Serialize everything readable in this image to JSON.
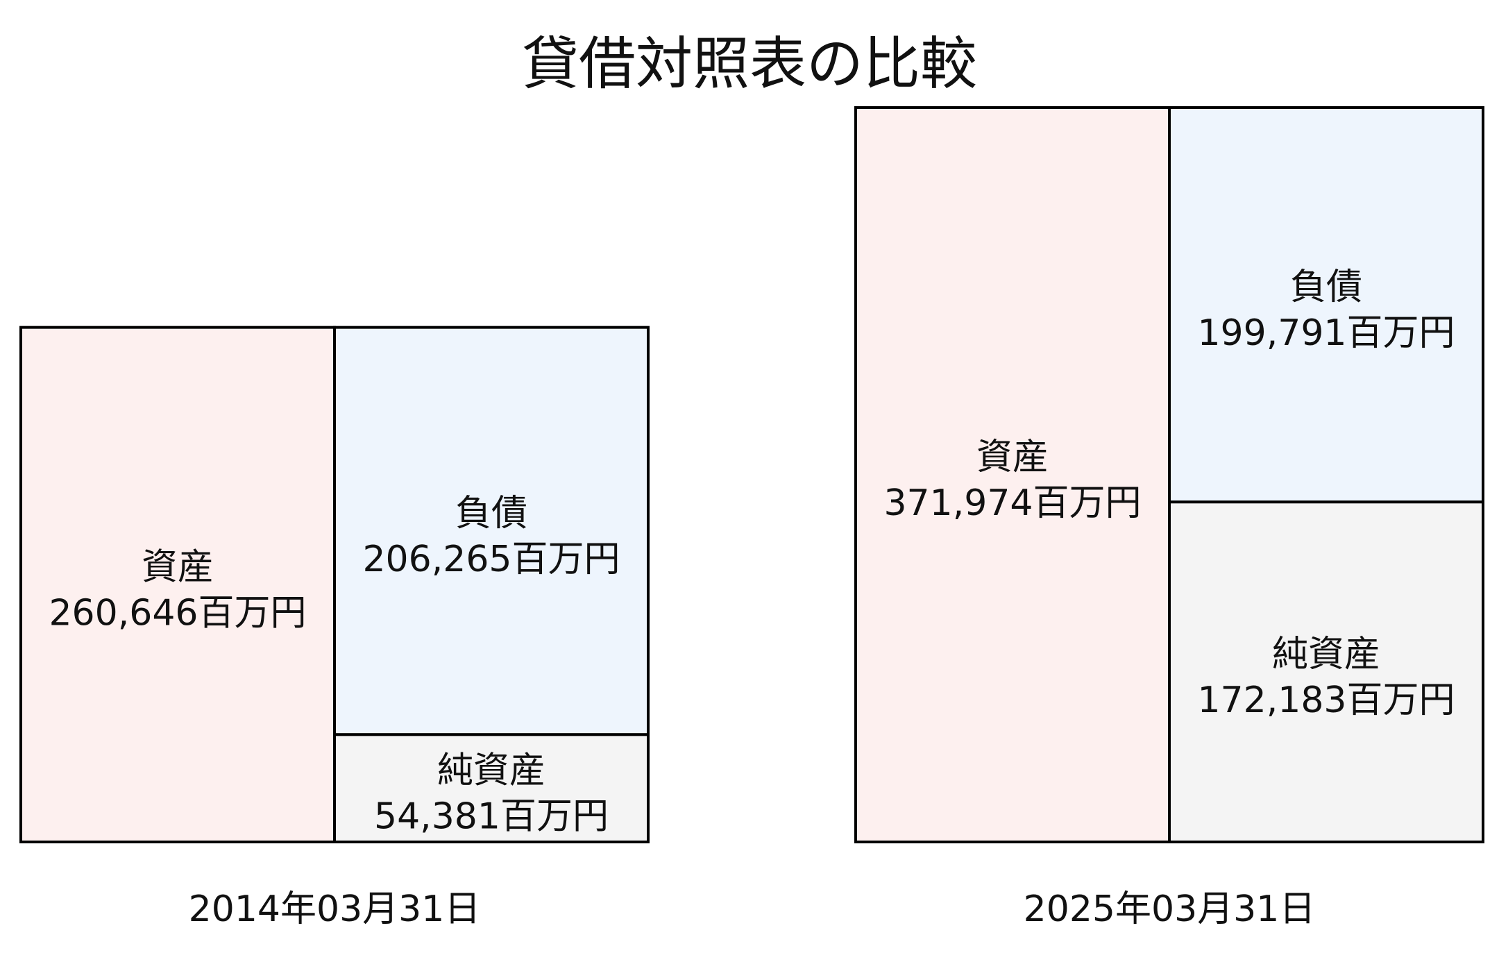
{
  "chart_data": {
    "type": "balance-sheet-block",
    "title": "貸借対照表の比較",
    "unit": "百万円",
    "colors": {
      "assets": "#fdf0ef",
      "liabilities": "#eef5fd",
      "net_assets": "#f4f4f4",
      "stroke": "#000000"
    },
    "periods": [
      {
        "date": "2014年03月31日",
        "assets": {
          "label": "資産",
          "value": 260646,
          "text": "260,646百万円"
        },
        "liabilities": {
          "label": "負債",
          "value": 206265,
          "text": "206,265百万円"
        },
        "net_assets": {
          "label": "純資産",
          "value": 54381,
          "text": "54,381百万円"
        }
      },
      {
        "date": "2025年03月31日",
        "assets": {
          "label": "資産",
          "value": 371974,
          "text": "371,974百万円"
        },
        "liabilities": {
          "label": "負債",
          "value": 199791,
          "text": "199,791百万円"
        },
        "net_assets": {
          "label": "純資産",
          "value": 172183,
          "text": "172,183百万円"
        }
      }
    ]
  }
}
